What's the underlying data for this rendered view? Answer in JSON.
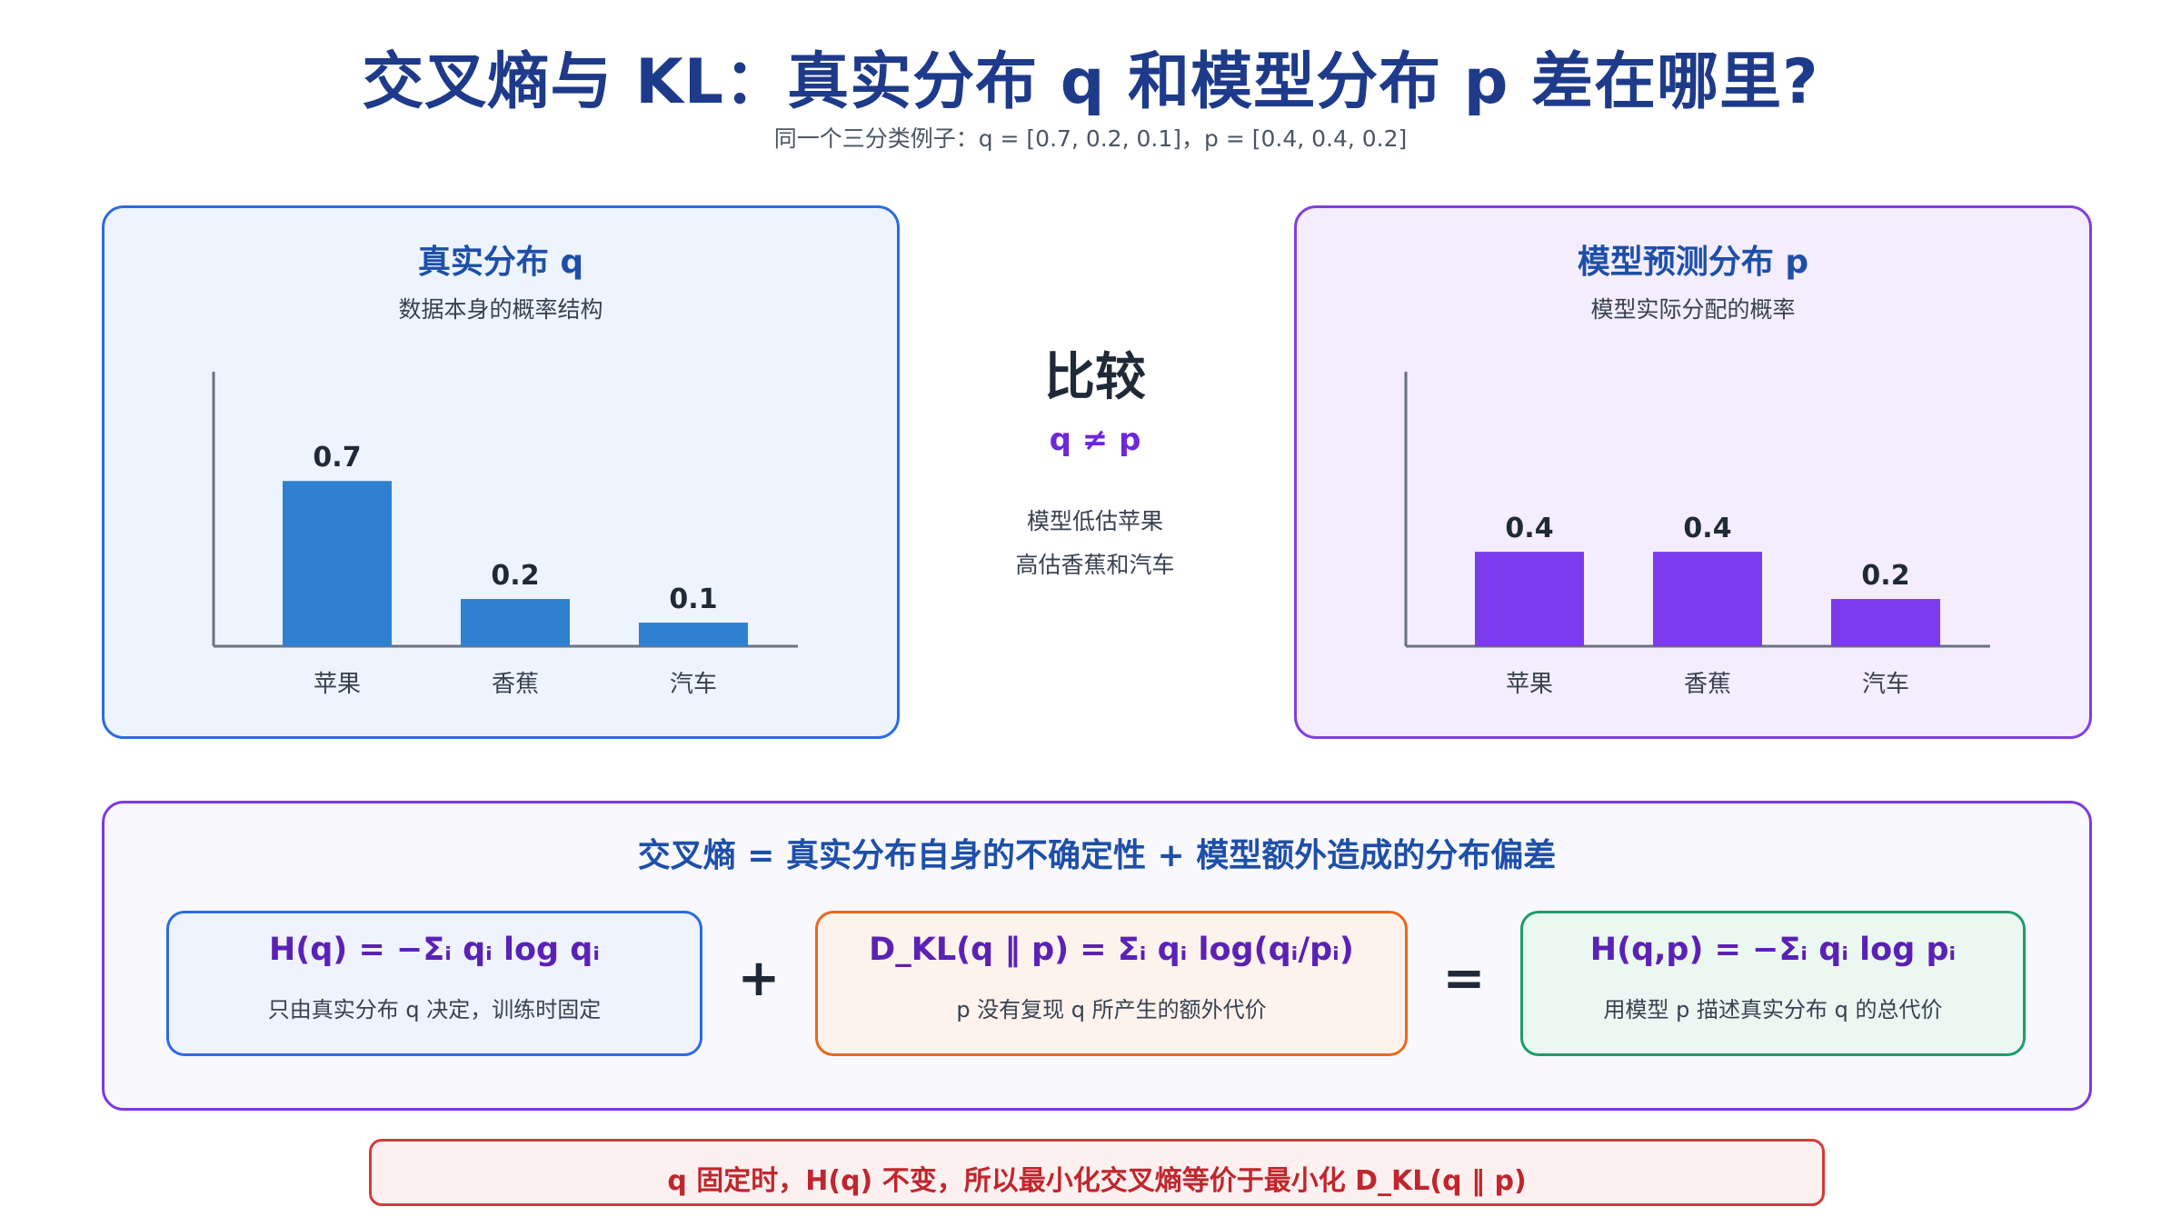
{
  "page": {
    "title": "交叉熵与 KL：真实分布 q 和模型分布 p 差在哪里?",
    "subtitle": "同一个三分类例子：q = [0.7, 0.2, 0.1]，p = [0.4, 0.4, 0.2]"
  },
  "panel_q": {
    "title": "真实分布 q",
    "subtitle": "数据本身的概率结构"
  },
  "panel_p": {
    "title": "模型预测分布 p",
    "subtitle": "模型实际分配的概率"
  },
  "compare": {
    "title": "比较",
    "relation": "q ≠ p",
    "note_line1": "模型低估苹果",
    "note_line2": "高估香蕉和汽车"
  },
  "formula": {
    "headline": "交叉熵 = 真实分布自身的不确定性 + 模型额外造成的分布偏差",
    "entropy": {
      "expr": "H(q) = −Σᵢ qᵢ log qᵢ",
      "desc": "只由真实分布 q 决定，训练时固定"
    },
    "kl": {
      "expr": "D_KL(q ‖ p) = Σᵢ qᵢ log(qᵢ/pᵢ)",
      "desc": "p 没有复现 q 所产生的额外代价"
    },
    "cross_entropy": {
      "expr": "H(q,p) = −Σᵢ qᵢ log pᵢ",
      "desc": "用模型 p 描述真实分布 q 的总代价"
    },
    "plus": "+",
    "equals": "="
  },
  "conclusion": "q 固定时，H(q) 不变，所以最小化交叉熵等价于最小化 D_KL(q ‖ p)",
  "chart_data": [
    {
      "type": "bar",
      "categories": [
        "苹果",
        "香蕉",
        "汽车"
      ],
      "values": [
        0.7,
        0.2,
        0.1
      ],
      "value_labels": [
        "0.7",
        "0.2",
        "0.1"
      ],
      "ylim": [
        0,
        1
      ],
      "color": "#2f80d1"
    },
    {
      "type": "bar",
      "categories": [
        "苹果",
        "香蕉",
        "汽车"
      ],
      "values": [
        0.4,
        0.4,
        0.2
      ],
      "value_labels": [
        "0.4",
        "0.4",
        "0.2"
      ],
      "ylim": [
        0,
        1
      ],
      "color": "#7c3aed"
    }
  ]
}
